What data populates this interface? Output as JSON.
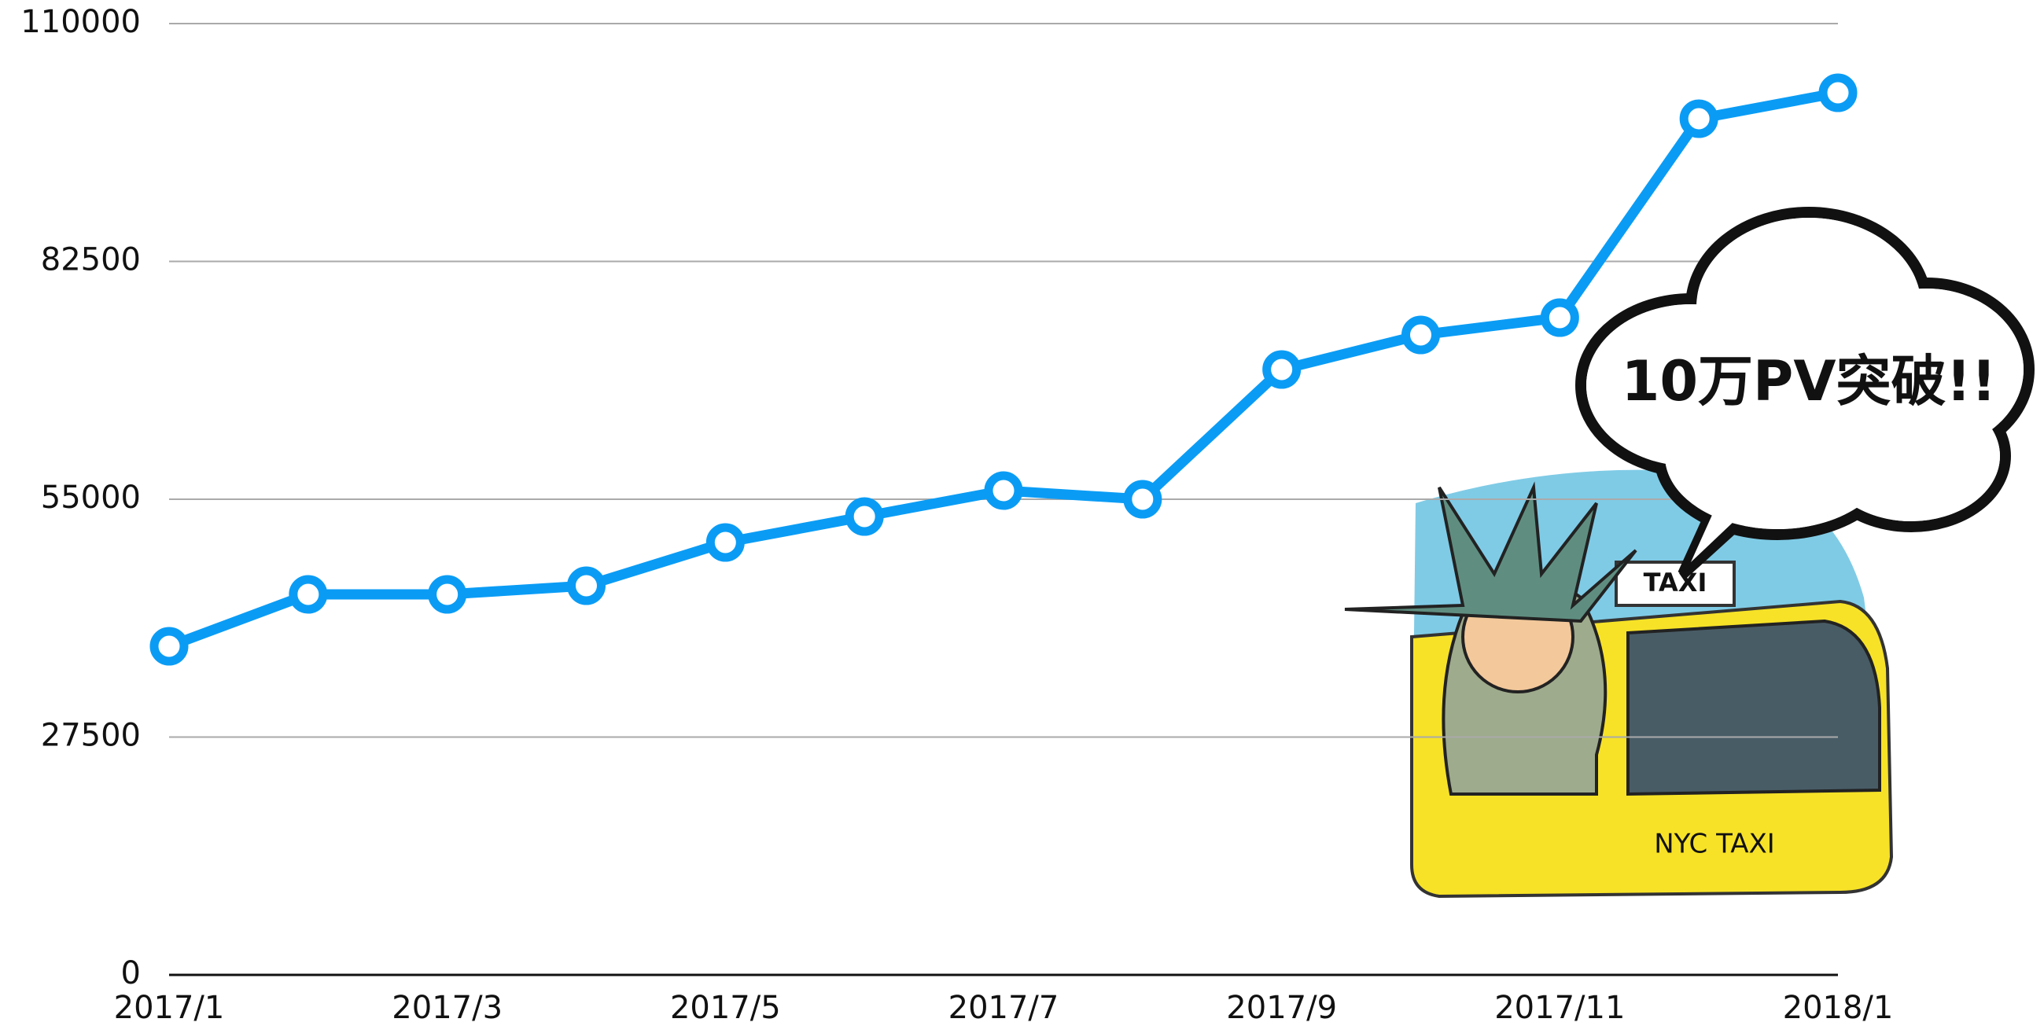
{
  "chart_data": {
    "type": "line",
    "categories": [
      "2017/1",
      null,
      "2017/3",
      null,
      "2017/5",
      null,
      "2017/7",
      null,
      "2017/9",
      null,
      "2017/11",
      null,
      "2018/1"
    ],
    "values": [
      38000,
      44000,
      44000,
      45000,
      50000,
      53000,
      56000,
      55000,
      70000,
      74000,
      76000,
      99000,
      102000
    ],
    "color": "#0a9cf5",
    "ylim": [
      0,
      110000
    ],
    "yticks": [
      0,
      27500,
      55000,
      82500,
      110000
    ],
    "grid": true,
    "annotation": "10万PV突破!!"
  },
  "illustration": {
    "sign": "TAXI",
    "door": "NYC TAXI"
  }
}
